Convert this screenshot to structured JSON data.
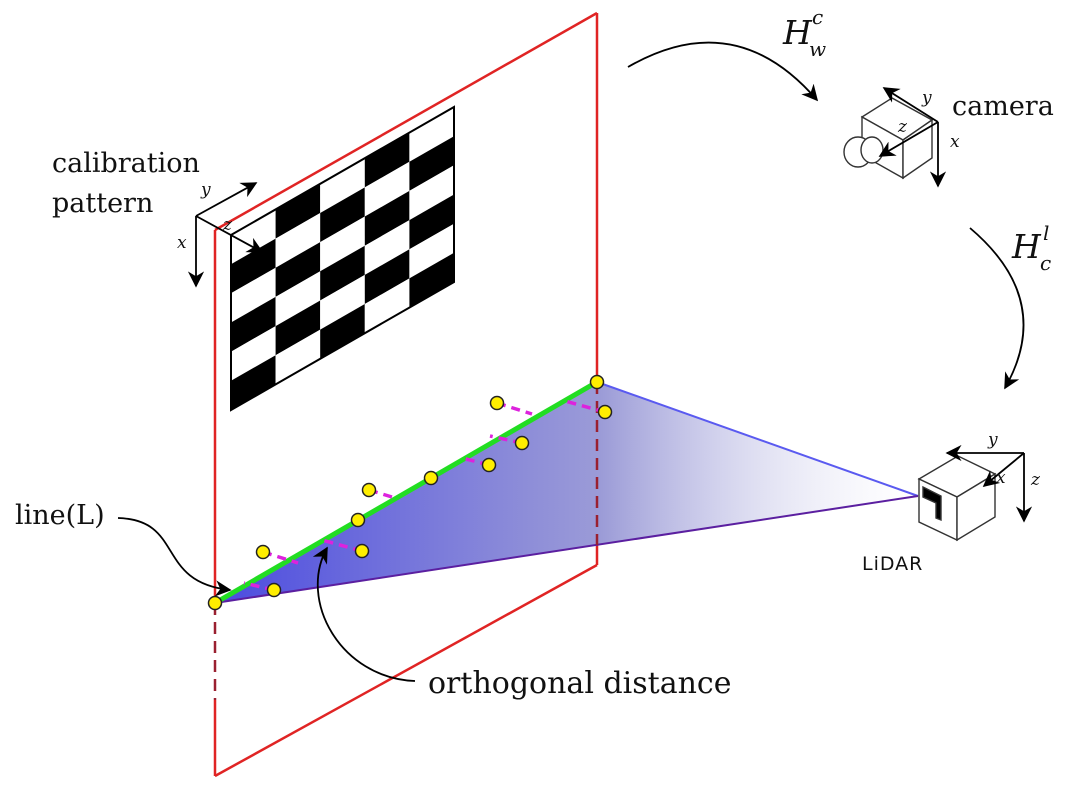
{
  "labels": {
    "calibration_line1": "calibration",
    "calibration_line2": "pattern",
    "camera": "camera",
    "lidar": "LiDAR",
    "line_l": "line(L)",
    "orthogonal_distance": "orthogonal distance"
  },
  "transforms": {
    "world_to_camera": {
      "base": "H",
      "sup": "c",
      "sub": "w"
    },
    "camera_to_lidar": {
      "base": "H",
      "sup": "l",
      "sub": "c"
    }
  },
  "axes": {
    "pattern": {
      "x": "x",
      "y": "y",
      "z": "z"
    },
    "camera": {
      "x": "x",
      "y": "y",
      "z": "z"
    },
    "lidar": {
      "x": "x",
      "y": "y",
      "z": "z"
    }
  },
  "colors": {
    "plane_edge": "#e02424",
    "fitted_line": "#22dd22",
    "residual": "#dd22dd",
    "lidar_point": "#ffee00",
    "scan_fan": "#4a4ae0",
    "scan_lower_edge": "#5b1fa0",
    "arrow": "#000000"
  },
  "pattern": {
    "rows": 6,
    "cols": 5,
    "first_cell_black": false
  }
}
